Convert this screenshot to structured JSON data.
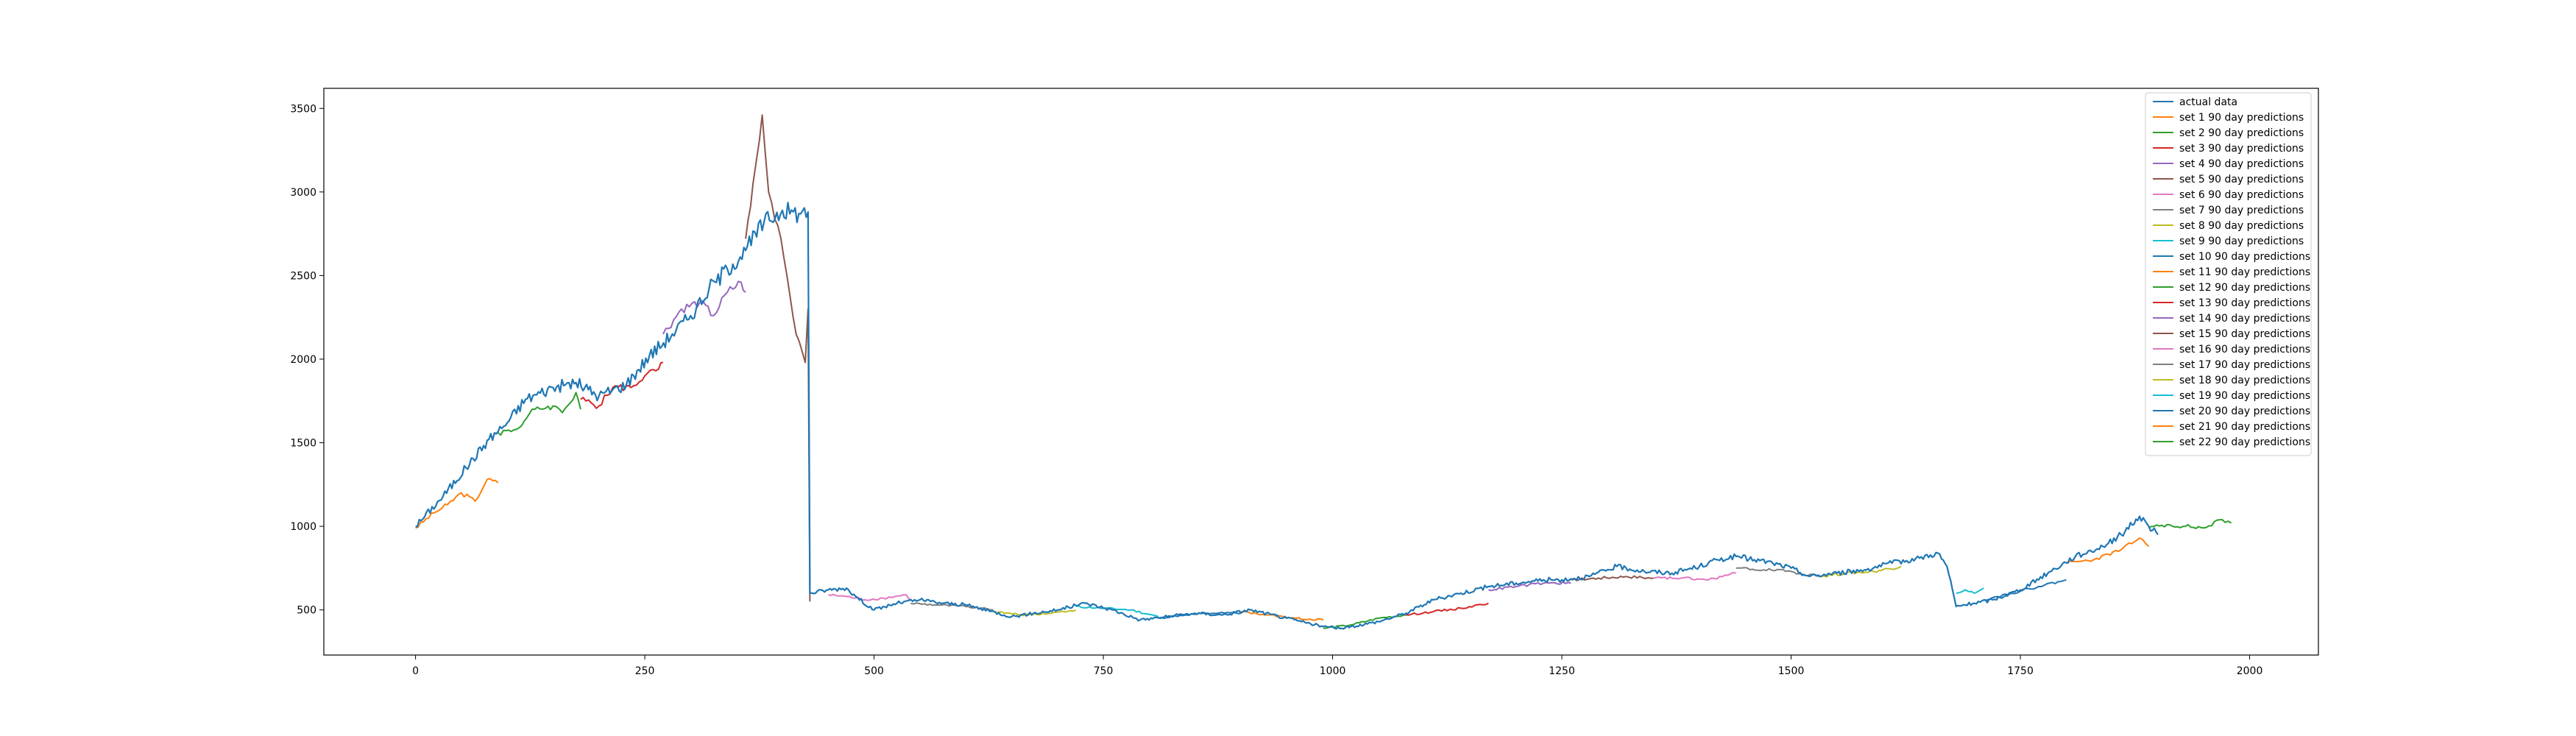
{
  "chart_data": {
    "type": "line",
    "title": "",
    "xlabel": "",
    "ylabel": "",
    "xlim": [
      -100,
      2075
    ],
    "ylim": [
      230,
      3620
    ],
    "xticks": [
      0,
      250,
      500,
      750,
      1000,
      1250,
      1500,
      1750,
      2000
    ],
    "xtick_labels": [
      "0",
      "250",
      "500",
      "750",
      "1000",
      "1250",
      "1500",
      "1750",
      "2000"
    ],
    "yticks": [
      500,
      1000,
      1500,
      2000,
      2500,
      3000,
      3500
    ],
    "ytick_labels": [
      "500",
      "1000",
      "1500",
      "2000",
      "2500",
      "3000",
      "3500"
    ],
    "legend_position": "top-right",
    "actual": {
      "name": "actual data",
      "color": "#1f77b4",
      "points": [
        [
          0,
          1000
        ],
        [
          30,
          1180
        ],
        [
          55,
          1350
        ],
        [
          80,
          1520
        ],
        [
          100,
          1620
        ],
        [
          120,
          1760
        ],
        [
          150,
          1830
        ],
        [
          175,
          1860
        ],
        [
          200,
          1780
        ],
        [
          230,
          1850
        ],
        [
          255,
          2020
        ],
        [
          280,
          2150
        ],
        [
          300,
          2260
        ],
        [
          320,
          2420
        ],
        [
          340,
          2540
        ],
        [
          360,
          2650
        ],
        [
          380,
          2820
        ],
        [
          400,
          2890
        ],
        [
          420,
          2870
        ],
        [
          428,
          2880
        ],
        [
          430,
          600
        ],
        [
          450,
          620
        ],
        [
          470,
          630
        ],
        [
          480,
          580
        ],
        [
          500,
          500
        ],
        [
          525,
          540
        ],
        [
          550,
          560
        ],
        [
          575,
          540
        ],
        [
          600,
          530
        ],
        [
          650,
          460
        ],
        [
          700,
          500
        ],
        [
          730,
          540
        ],
        [
          760,
          500
        ],
        [
          790,
          440
        ],
        [
          820,
          460
        ],
        [
          850,
          480
        ],
        [
          880,
          470
        ],
        [
          910,
          500
        ],
        [
          950,
          450
        ],
        [
          990,
          400
        ],
        [
          1010,
          390
        ],
        [
          1050,
          430
        ],
        [
          1080,
          480
        ],
        [
          1110,
          560
        ],
        [
          1140,
          600
        ],
        [
          1170,
          640
        ],
        [
          1200,
          660
        ],
        [
          1230,
          680
        ],
        [
          1250,
          680
        ],
        [
          1280,
          700
        ],
        [
          1310,
          760
        ],
        [
          1340,
          730
        ],
        [
          1370,
          720
        ],
        [
          1400,
          760
        ],
        [
          1420,
          800
        ],
        [
          1440,
          820
        ],
        [
          1460,
          800
        ],
        [
          1480,
          780
        ],
        [
          1500,
          750
        ],
        [
          1520,
          700
        ],
        [
          1550,
          720
        ],
        [
          1580,
          740
        ],
        [
          1610,
          780
        ],
        [
          1640,
          810
        ],
        [
          1660,
          840
        ],
        [
          1670,
          760
        ],
        [
          1680,
          520
        ],
        [
          1700,
          540
        ],
        [
          1720,
          560
        ],
        [
          1750,
          620
        ],
        [
          1780,
          720
        ],
        [
          1810,
          820
        ],
        [
          1840,
          880
        ],
        [
          1860,
          950
        ],
        [
          1880,
          1060
        ],
        [
          1890,
          1000
        ],
        [
          1900,
          950
        ]
      ]
    },
    "series": [
      {
        "name": "set 1 90 day predictions",
        "color": "#ff7f0e",
        "values": [
          [
            0,
            990
          ],
          [
            20,
            1080
          ],
          [
            35,
            1130
          ],
          [
            50,
            1200
          ],
          [
            65,
            1150
          ],
          [
            78,
            1280
          ],
          [
            90,
            1260
          ]
        ]
      },
      {
        "name": "set 2 90 day predictions",
        "color": "#2ca02c",
        "values": [
          [
            90,
            1560
          ],
          [
            110,
            1580
          ],
          [
            130,
            1700
          ],
          [
            150,
            1720
          ],
          [
            160,
            1680
          ],
          [
            175,
            1800
          ],
          [
            180,
            1700
          ]
        ]
      },
      {
        "name": "set 3 90 day predictions",
        "color": "#d62728",
        "values": [
          [
            180,
            1760
          ],
          [
            200,
            1720
          ],
          [
            215,
            1830
          ],
          [
            235,
            1830
          ],
          [
            250,
            1900
          ],
          [
            265,
            1940
          ],
          [
            270,
            1980
          ]
        ]
      },
      {
        "name": "set 4 90 day predictions",
        "color": "#9467bd",
        "values": [
          [
            270,
            2150
          ],
          [
            290,
            2300
          ],
          [
            310,
            2340
          ],
          [
            325,
            2260
          ],
          [
            340,
            2400
          ],
          [
            355,
            2460
          ],
          [
            360,
            2400
          ]
        ]
      },
      {
        "name": "set 5 90 day predictions",
        "color": "#8c564b",
        "values": [
          [
            360,
            2720
          ],
          [
            368,
            3050
          ],
          [
            372,
            3200
          ],
          [
            378,
            3460
          ],
          [
            385,
            3000
          ],
          [
            395,
            2800
          ],
          [
            405,
            2500
          ],
          [
            415,
            2150
          ],
          [
            425,
            1980
          ],
          [
            428,
            2300
          ],
          [
            430,
            550
          ]
        ]
      },
      {
        "name": "set 6 90 day predictions",
        "color": "#e377c2",
        "values": [
          [
            450,
            590
          ],
          [
            470,
            580
          ],
          [
            490,
            560
          ],
          [
            510,
            570
          ],
          [
            535,
            590
          ],
          [
            540,
            560
          ]
        ]
      },
      {
        "name": "set 7 90 day predictions",
        "color": "#7f7f7f",
        "values": [
          [
            540,
            540
          ],
          [
            570,
            530
          ],
          [
            600,
            520
          ],
          [
            630,
            500
          ]
        ]
      },
      {
        "name": "set 8 90 day predictions",
        "color": "#bcbd22",
        "values": [
          [
            630,
            490
          ],
          [
            660,
            470
          ],
          [
            690,
            480
          ],
          [
            720,
            500
          ]
        ]
      },
      {
        "name": "set 9 90 day predictions",
        "color": "#17becf",
        "values": [
          [
            720,
            520
          ],
          [
            750,
            510
          ],
          [
            780,
            500
          ],
          [
            810,
            460
          ]
        ]
      },
      {
        "name": "set 10 90 day predictions",
        "color": "#1f77b4",
        "values": [
          [
            810,
            450
          ],
          [
            840,
            470
          ],
          [
            870,
            480
          ],
          [
            900,
            480
          ]
        ]
      },
      {
        "name": "set 11 90 day predictions",
        "color": "#ff7f0e",
        "values": [
          [
            900,
            490
          ],
          [
            930,
            470
          ],
          [
            960,
            450
          ],
          [
            990,
            440
          ]
        ]
      },
      {
        "name": "set 12 90 day predictions",
        "color": "#2ca02c",
        "values": [
          [
            990,
            390
          ],
          [
            1020,
            410
          ],
          [
            1050,
            450
          ],
          [
            1080,
            470
          ]
        ]
      },
      {
        "name": "set 13 90 day predictions",
        "color": "#d62728",
        "values": [
          [
            1080,
            470
          ],
          [
            1110,
            490
          ],
          [
            1140,
            510
          ],
          [
            1170,
            540
          ]
        ]
      },
      {
        "name": "set 14 90 day predictions",
        "color": "#9467bd",
        "values": [
          [
            1170,
            620
          ],
          [
            1200,
            640
          ],
          [
            1230,
            660
          ],
          [
            1260,
            660
          ]
        ]
      },
      {
        "name": "set 15 90 day predictions",
        "color": "#8c564b",
        "values": [
          [
            1260,
            680
          ],
          [
            1290,
            690
          ],
          [
            1320,
            700
          ],
          [
            1350,
            690
          ]
        ]
      },
      {
        "name": "set 16 90 day predictions",
        "color": "#e377c2",
        "values": [
          [
            1350,
            690
          ],
          [
            1380,
            690
          ],
          [
            1410,
            680
          ],
          [
            1440,
            720
          ]
        ]
      },
      {
        "name": "set 17 90 day predictions",
        "color": "#7f7f7f",
        "values": [
          [
            1440,
            750
          ],
          [
            1470,
            740
          ],
          [
            1500,
            730
          ],
          [
            1530,
            700
          ]
        ]
      },
      {
        "name": "set 18 90 day predictions",
        "color": "#bcbd22",
        "values": [
          [
            1530,
            700
          ],
          [
            1560,
            720
          ],
          [
            1590,
            730
          ],
          [
            1620,
            760
          ]
        ]
      },
      {
        "name": "set 19 90 day predictions",
        "color": "#17becf",
        "values": [
          [
            1680,
            600
          ],
          [
            1690,
            620
          ],
          [
            1700,
            600
          ],
          [
            1710,
            630
          ]
        ]
      },
      {
        "name": "set 20 90 day predictions",
        "color": "#1f77b4",
        "values": [
          [
            1710,
            560
          ],
          [
            1740,
            600
          ],
          [
            1770,
            640
          ],
          [
            1800,
            680
          ]
        ]
      },
      {
        "name": "set 21 90 day predictions",
        "color": "#ff7f0e",
        "values": [
          [
            1800,
            780
          ],
          [
            1830,
            800
          ],
          [
            1860,
            860
          ],
          [
            1880,
            930
          ],
          [
            1890,
            880
          ]
        ]
      },
      {
        "name": "set 22 90 day predictions",
        "color": "#2ca02c",
        "values": [
          [
            1890,
            990
          ],
          [
            1910,
            1010
          ],
          [
            1930,
            1000
          ],
          [
            1950,
            990
          ],
          [
            1970,
            1040
          ],
          [
            1980,
            1020
          ]
        ]
      }
    ]
  }
}
